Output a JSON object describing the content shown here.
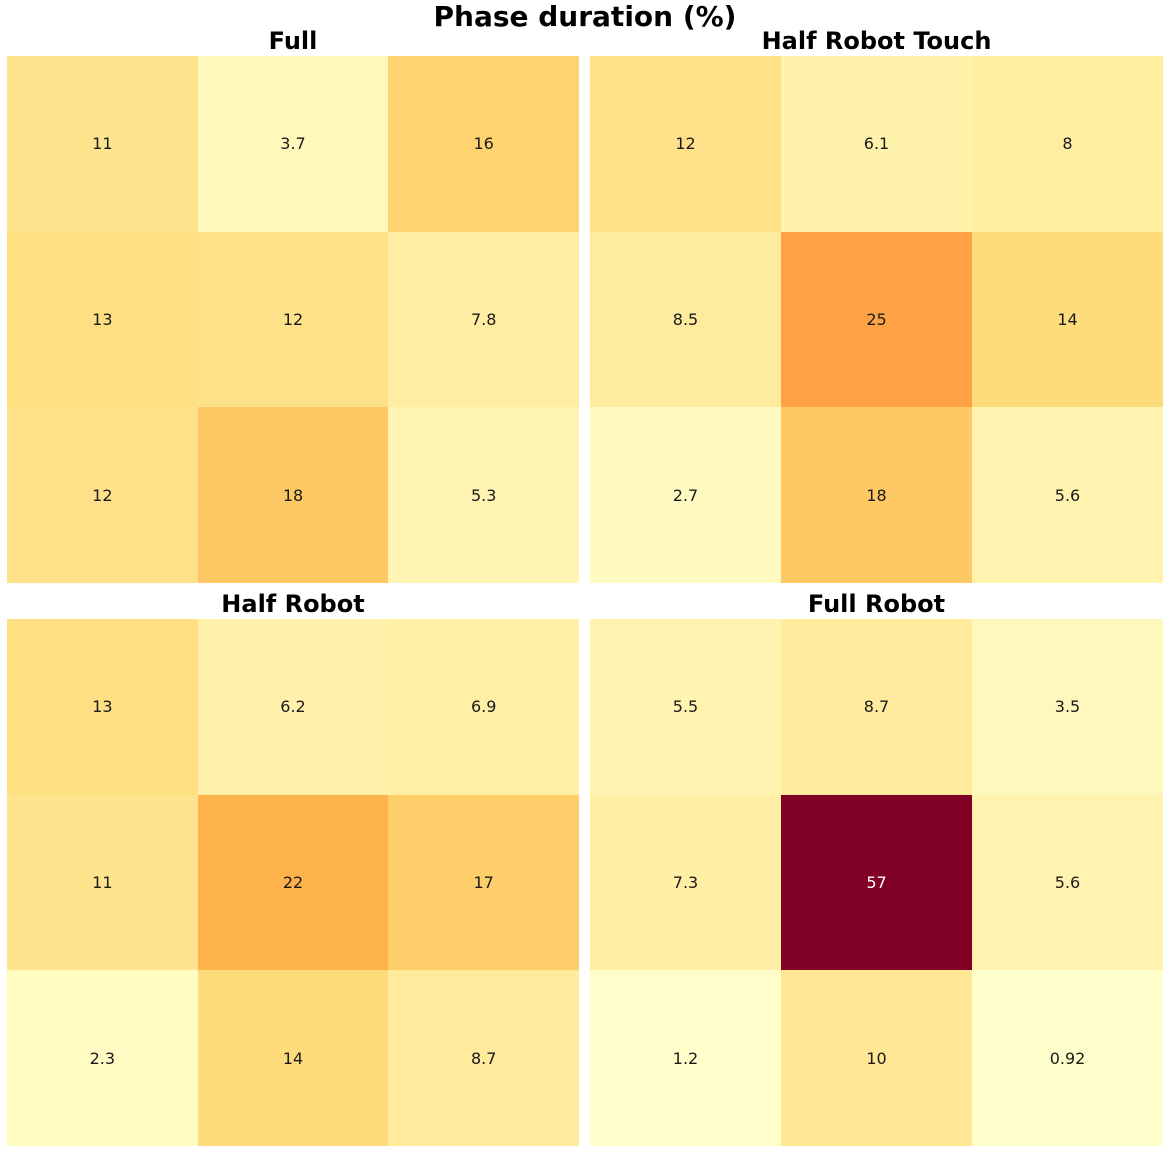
{
  "chart_data": {
    "type": "heatmap",
    "title": "Phase duration (%)",
    "colormap": "YlOrRd",
    "vmin": 0.92,
    "vmax": 57,
    "panels": [
      {
        "title": "Full",
        "values": [
          [
            11,
            3.7,
            16
          ],
          [
            13,
            12,
            7.8
          ],
          [
            12,
            18,
            5.3
          ]
        ],
        "labels": [
          [
            "11",
            "3.7",
            "16"
          ],
          [
            "13",
            "12",
            "7.8"
          ],
          [
            "12",
            "18",
            "5.3"
          ]
        ]
      },
      {
        "title": "Half Robot Touch",
        "values": [
          [
            12,
            6.1,
            8
          ],
          [
            8.5,
            25,
            14
          ],
          [
            2.7,
            18,
            5.6
          ]
        ],
        "labels": [
          [
            "12",
            "6.1",
            "8"
          ],
          [
            "8.5",
            "25",
            "14"
          ],
          [
            "2.7",
            "18",
            "5.6"
          ]
        ]
      },
      {
        "title": "Half Robot",
        "values": [
          [
            13,
            6.2,
            6.9
          ],
          [
            11,
            22,
            17
          ],
          [
            2.3,
            14,
            8.7
          ]
        ],
        "labels": [
          [
            "13",
            "6.2",
            "6.9"
          ],
          [
            "11",
            "22",
            "17"
          ],
          [
            "2.3",
            "14",
            "8.7"
          ]
        ]
      },
      {
        "title": "Full Robot",
        "values": [
          [
            5.5,
            8.7,
            3.5
          ],
          [
            7.3,
            57,
            5.6
          ],
          [
            1.2,
            10,
            0.92
          ]
        ],
        "labels": [
          [
            "5.5",
            "8.7",
            "3.5"
          ],
          [
            "7.3",
            "57",
            "5.6"
          ],
          [
            "1.2",
            "10",
            "0.92"
          ]
        ]
      }
    ]
  }
}
